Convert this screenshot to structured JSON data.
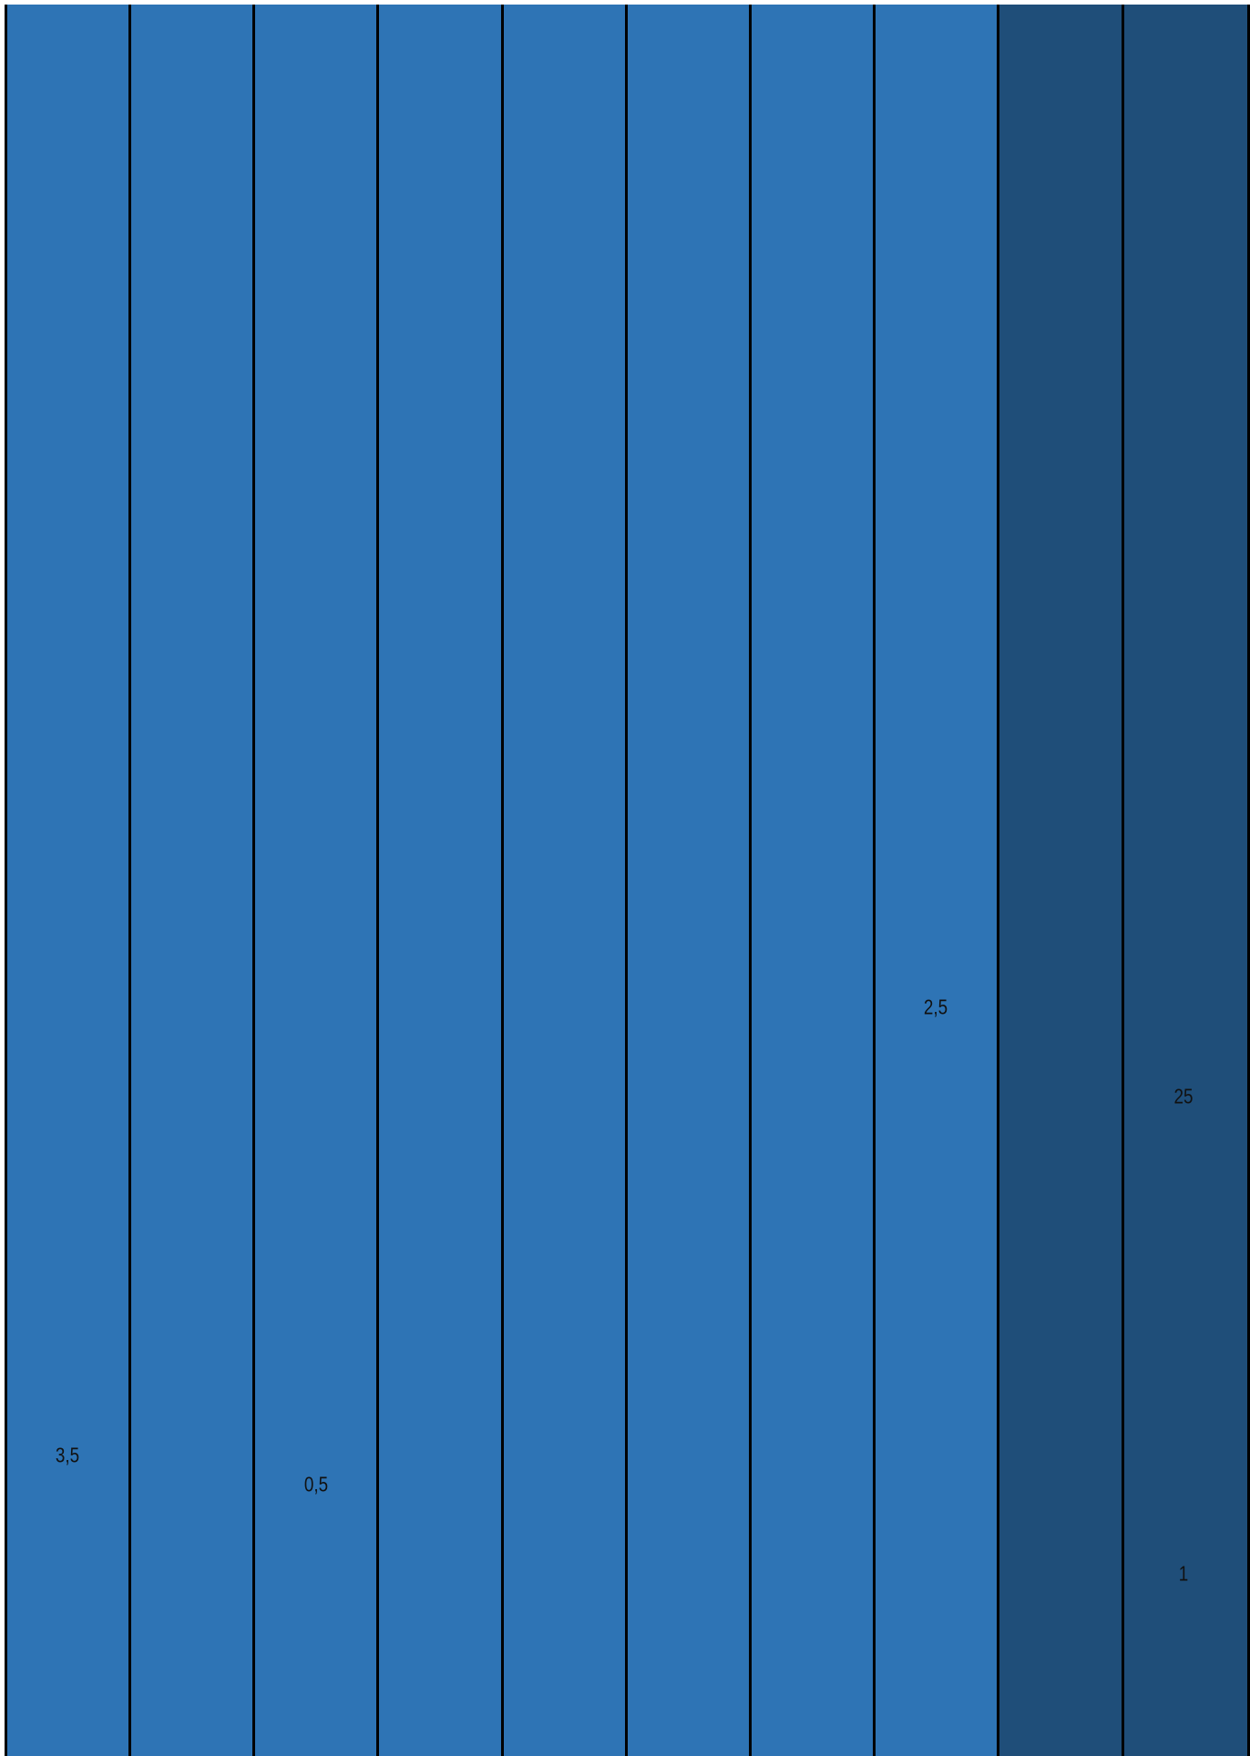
{
  "labels": [
    "3,5",
    "0,5",
    "2,5",
    "25",
    "1"
  ]
}
